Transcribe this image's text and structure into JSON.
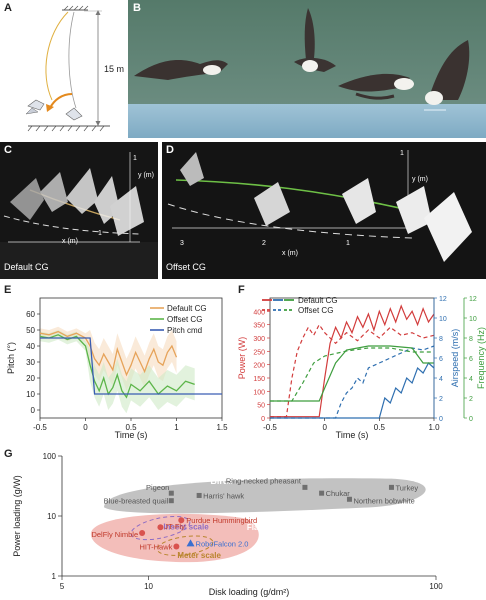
{
  "panels": {
    "A": {
      "label": "A",
      "height_label": "15 m"
    },
    "B": {
      "label": "B"
    },
    "C": {
      "label": "C",
      "caption": "Default CG",
      "xaxis": "x (m)",
      "yaxis": "y (m)",
      "tick_x": "1",
      "tick_y": "1"
    },
    "D": {
      "label": "D",
      "caption": "Offset CG",
      "xaxis": "x (m)",
      "yaxis": "y (m)",
      "ticks_x": [
        "3",
        "2",
        "1"
      ],
      "tick_y": "1"
    },
    "E": {
      "label": "E"
    },
    "F": {
      "label": "F"
    },
    "G": {
      "label": "G"
    }
  },
  "colors": {
    "default_cg": "#e6a35a",
    "offset_cg": "#5db54a",
    "pitch_cmd": "#3a5db3",
    "power": "#d23c3c",
    "airspeed": "#2f6fb0",
    "frequency": "#3f9e3f"
  },
  "chart_data": [
    {
      "type": "line",
      "panel": "E",
      "xlabel": "Time (s)",
      "ylabel": "Pitch (°)",
      "xlim": [
        -0.5,
        1.5
      ],
      "ylim": [
        -5,
        70
      ],
      "xticks": [
        "-0.5",
        "0",
        "0.5",
        "1",
        "1.5"
      ],
      "yticks": [
        "0",
        "10",
        "20",
        "30",
        "40",
        "50",
        "60"
      ],
      "legend": "top-right",
      "series": [
        {
          "name": "Default CG",
          "color": "#e6a35a",
          "x": [
            -0.5,
            -0.4,
            -0.3,
            -0.2,
            -0.1,
            0,
            0.05,
            0.1,
            0.15,
            0.2,
            0.25,
            0.3,
            0.35,
            0.4,
            0.45,
            0.5,
            0.55,
            0.6,
            0.65,
            0.7,
            0.75,
            0.8,
            0.85,
            0.9,
            0.95,
            1.0
          ],
          "y": [
            48,
            47,
            49,
            46,
            48,
            45,
            40,
            32,
            28,
            35,
            30,
            25,
            38,
            30,
            22,
            28,
            36,
            30,
            24,
            32,
            38,
            30,
            28,
            36,
            40,
            33
          ]
        },
        {
          "name": "Offset CG",
          "color": "#5db54a",
          "x": [
            -0.5,
            -0.4,
            -0.3,
            -0.2,
            -0.1,
            0,
            0.05,
            0.1,
            0.15,
            0.2,
            0.25,
            0.3,
            0.35,
            0.4,
            0.45,
            0.5,
            0.6,
            0.7,
            0.8,
            0.9,
            1.0,
            1.1,
            1.2
          ],
          "y": [
            46,
            45,
            47,
            44,
            46,
            40,
            28,
            18,
            12,
            20,
            10,
            14,
            22,
            12,
            8,
            16,
            12,
            18,
            10,
            15,
            12,
            18,
            16
          ]
        },
        {
          "name": "Pitch cmd",
          "color": "#3a5db3",
          "x": [
            -0.5,
            0.05,
            0.1,
            1.5
          ],
          "y": [
            45,
            45,
            10,
            10
          ]
        }
      ]
    },
    {
      "type": "line",
      "panel": "F",
      "xlabel": "Time (s)",
      "ylabel_left": "Power (W)",
      "ylabel_right1": "Airspeed (m/s)",
      "ylabel_right2": "Frequency (Hz)",
      "xlim": [
        -0.5,
        1.0
      ],
      "ylim_left": [
        0,
        450
      ],
      "ylim_right1": [
        0,
        12
      ],
      "ylim_right2": [
        0,
        12
      ],
      "xticks": [
        "-0.5",
        "0",
        "0.5",
        "1.0"
      ],
      "yticks_left": [
        "0",
        "50",
        "100",
        "150",
        "200",
        "250",
        "300",
        "350",
        "400"
      ],
      "yticks_right1": [
        "0",
        "2",
        "4",
        "6",
        "8",
        "10",
        "12"
      ],
      "yticks_right2": [
        "0",
        "2",
        "4",
        "6",
        "8",
        "10",
        "12"
      ],
      "legend_entries": [
        "Default CG",
        "Offset CG"
      ],
      "series": [
        {
          "name": "Default CG",
          "measure": "power",
          "color": "#d23c3c",
          "dash": false,
          "x": [
            -0.5,
            -0.05,
            0,
            0.05,
            0.1,
            0.15,
            0.2,
            0.25,
            0.3,
            0.35,
            0.4,
            0.45,
            0.5,
            0.55,
            0.6,
            0.65,
            0.7,
            0.75,
            0.8,
            0.85,
            0.9,
            0.95,
            1.0
          ],
          "y": [
            5,
            5,
            150,
            280,
            340,
            300,
            360,
            320,
            380,
            340,
            390,
            330,
            400,
            350,
            410,
            360,
            420,
            370,
            400,
            350,
            410,
            360,
            390
          ]
        },
        {
          "name": "Offset CG",
          "measure": "power",
          "color": "#d23c3c",
          "dash": true,
          "x": [
            -0.5,
            -0.35,
            -0.3,
            -0.25,
            -0.2,
            -0.15,
            -0.1,
            -0.05,
            0,
            0.05,
            0.1,
            0.2,
            0.3,
            0.4,
            0.5,
            0.6,
            0.7,
            0.8,
            0.9,
            1.0
          ],
          "y": [
            5,
            5,
            150,
            250,
            300,
            340,
            310,
            350,
            320,
            300,
            280,
            320,
            290,
            330,
            300,
            340,
            310,
            320,
            300,
            310
          ]
        },
        {
          "name": "Default CG",
          "measure": "airspeed",
          "color": "#2f6fb0",
          "dash": false,
          "x": [
            -0.5,
            0.5,
            0.55,
            0.6,
            0.65,
            0.7,
            0.75,
            0.8,
            0.85,
            0.9,
            0.95,
            1.0
          ],
          "y": [
            0,
            0,
            2,
            1.5,
            3,
            2.5,
            4,
            3.5,
            5,
            4.5,
            5.5,
            5
          ]
        },
        {
          "name": "Offset CG",
          "measure": "airspeed",
          "color": "#2f6fb0",
          "dash": true,
          "x": [
            -0.5,
            0.1,
            0.15,
            0.2,
            0.25,
            0.3,
            0.35,
            0.4,
            0.5,
            0.6,
            0.7,
            0.8,
            0.9,
            1.0
          ],
          "y": [
            0,
            0,
            1.5,
            2.5,
            3,
            4,
            3.5,
            5,
            5.5,
            6,
            6.5,
            7,
            6.8,
            7.2
          ]
        },
        {
          "name": "Default CG",
          "measure": "frequency",
          "color": "#3f9e3f",
          "dash": false,
          "x": [
            -0.5,
            -0.05,
            0,
            0.1,
            0.2,
            0.4,
            0.6,
            0.8,
            0.9,
            1.0
          ],
          "y": [
            1.7,
            1.7,
            3,
            5.5,
            6.8,
            7.2,
            7.2,
            7,
            5.5,
            5.5
          ]
        },
        {
          "name": "Offset CG",
          "measure": "frequency",
          "color": "#3f9e3f",
          "dash": true,
          "x": [
            -0.5,
            -0.3,
            -0.2,
            -0.1,
            0,
            0.2,
            0.4,
            0.6,
            0.8,
            1.0
          ],
          "y": [
            1.7,
            1.7,
            3.5,
            5.5,
            6.2,
            6.7,
            7,
            7,
            6.6,
            6.6
          ]
        }
      ]
    },
    {
      "type": "scatter",
      "panel": "G",
      "xlabel": "Disk loading (g/dm²)",
      "ylabel": "Power loading (g/W)",
      "xscale": "log",
      "yscale": "log",
      "xlim": [
        5,
        100
      ],
      "ylim": [
        1,
        100
      ],
      "xticks": [
        "5",
        "10",
        "100"
      ],
      "yticks": [
        "1",
        "10",
        "100"
      ],
      "groups": [
        {
          "name": "Birds",
          "color": "#b7b7b7"
        },
        {
          "name": "Flapping robots",
          "color": "#f1b3ae"
        },
        {
          "name": "Insect scale",
          "color": "#8e6cc4"
        },
        {
          "name": "Meter scale",
          "color": "#b9852e"
        }
      ],
      "points": [
        {
          "label": "Pigeon",
          "x": 12,
          "y": 24,
          "group": "Birds"
        },
        {
          "label": "Harris' hawk",
          "x": 15,
          "y": 22,
          "group": "Birds"
        },
        {
          "label": "Ring-necked pheasant",
          "x": 35,
          "y": 30,
          "group": "Birds"
        },
        {
          "label": "Chukar",
          "x": 40,
          "y": 24,
          "group": "Birds"
        },
        {
          "label": "Turkey",
          "x": 70,
          "y": 30,
          "group": "Birds"
        },
        {
          "label": "Blue-breasted quail",
          "x": 12,
          "y": 18,
          "group": "Birds"
        },
        {
          "label": "Northern bobwhite",
          "x": 50,
          "y": 19,
          "group": "Birds"
        },
        {
          "label": "DelFly Nimble",
          "x": 9.5,
          "y": 5.2,
          "group": "Flapping robots"
        },
        {
          "label": "JT-Fly",
          "x": 11,
          "y": 6.5,
          "group": "Flapping robots"
        },
        {
          "label": "Purdue Hummingbird",
          "x": 13,
          "y": 8.5,
          "group": "Flapping robots"
        },
        {
          "label": "HIT-Hawk",
          "x": 12.5,
          "y": 3.1,
          "group": "Flapping robots"
        },
        {
          "label": "RoboFalcon 2.0",
          "x": 14,
          "y": 3.5,
          "group": "Flapping robots"
        }
      ]
    }
  ]
}
